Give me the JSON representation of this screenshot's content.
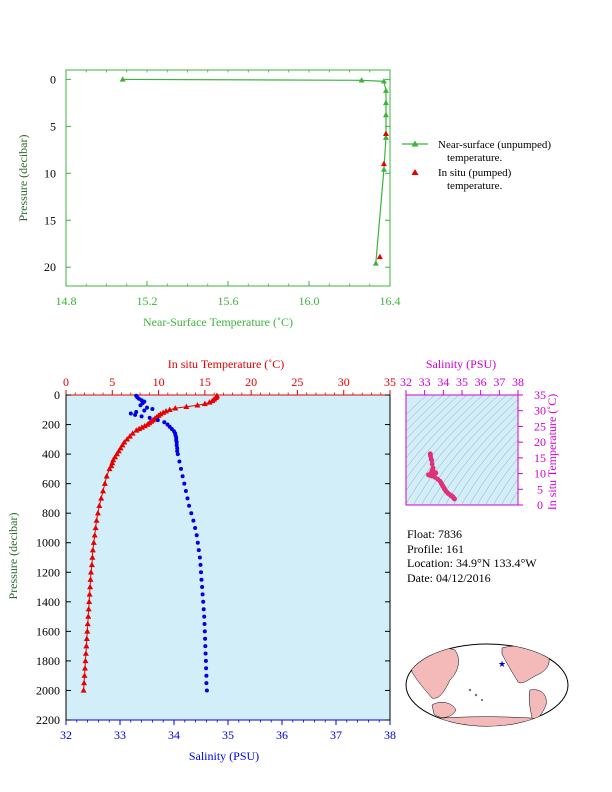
{
  "colors": {
    "green": "#3cb43c",
    "red": "#e60000",
    "blue": "#0000e6",
    "magenta": "#d200d2",
    "darkgreen": "#2e6b2e",
    "ocean": "#d2eef8",
    "land": "#f4b9b9"
  },
  "top_chart": {
    "xlabel": "Near-Surface Temperature (˚C)",
    "ylabel": "Pressure (decibar)",
    "xticks": [
      "14.8",
      "15.2",
      "15.6",
      "16.0",
      "16.4"
    ],
    "yticks": [
      "0",
      "5",
      "10",
      "15",
      "20"
    ],
    "legend": {
      "near_l1": "Near-surface (unpumped)",
      "near_l2": "temperature.",
      "insitu_l1": "In situ (pumped)",
      "insitu_l2": "temperature."
    }
  },
  "main_chart": {
    "top_label": "In situ Temperature (˚C)",
    "bottom_label": "Salinity (PSU)",
    "ylabel": "Pressure (decibar)",
    "temp_ticks": [
      "0",
      "5",
      "10",
      "15",
      "20",
      "25",
      "30",
      "35"
    ],
    "sal_ticks": [
      "32",
      "33",
      "34",
      "35",
      "36",
      "37",
      "38"
    ],
    "p_ticks": [
      "0",
      "200",
      "400",
      "600",
      "800",
      "1000",
      "1200",
      "1400",
      "1600",
      "1800",
      "2000",
      "2200"
    ]
  },
  "ts_chart": {
    "top_label": "Salinity (PSU)",
    "right_label": "In situ Temperature (˚C)",
    "sal_ticks": [
      "32",
      "33",
      "34",
      "35",
      "36",
      "37",
      "38"
    ],
    "temp_ticks": [
      "0",
      "5",
      "10",
      "15",
      "20",
      "25",
      "30",
      "35"
    ]
  },
  "info": {
    "float": "Float:  7836",
    "profile": "Profile:  161",
    "location": "Location:  34.9°N  133.4°W",
    "date": "Date:  04/12/2016"
  },
  "chart_data": [
    {
      "type": "line",
      "title": "",
      "xlabel": "Near-Surface Temperature (˚C)",
      "ylabel": "Pressure (decibar)",
      "xlim": [
        14.8,
        16.4
      ],
      "ylim": [
        22,
        -1
      ],
      "legend": "right",
      "series": [
        {
          "name": "Near-surface (unpumped) temperature.",
          "marker": "triangle",
          "x": [
            15.08,
            16.26,
            16.37,
            16.38,
            16.38,
            16.38,
            16.38,
            16.37,
            16.33
          ],
          "y": [
            0.0,
            0.1,
            0.2,
            1.2,
            2.5,
            3.8,
            6.2,
            9.6,
            19.6
          ]
        },
        {
          "name": "In situ (pumped) temperature.",
          "marker": "triangle",
          "x": [
            16.38,
            16.37,
            16.35
          ],
          "y": [
            5.8,
            9.0,
            18.9
          ]
        }
      ]
    },
    {
      "type": "line",
      "title": "",
      "xlabel": "Salinity (PSU)",
      "x2label": "In situ Temperature (˚C)",
      "ylabel": "Pressure (decibar)",
      "xlim_salinity": [
        32,
        38
      ],
      "xlim_temperature": [
        0,
        35
      ],
      "ylim": [
        2200,
        0
      ],
      "series": [
        {
          "name": "In situ Temperature (˚C)",
          "p": [
            5,
            10,
            20,
            30,
            40,
            50,
            60,
            70,
            80,
            90,
            100,
            110,
            120,
            130,
            140,
            150,
            160,
            170,
            180,
            190,
            200,
            210,
            220,
            230,
            240,
            260,
            280,
            300,
            320,
            340,
            360,
            380,
            400,
            420,
            440,
            460,
            480,
            500,
            550,
            600,
            650,
            700,
            750,
            800,
            850,
            900,
            950,
            1000,
            1050,
            1100,
            1150,
            1200,
            1250,
            1300,
            1350,
            1400,
            1450,
            1500,
            1550,
            1600,
            1650,
            1700,
            1750,
            1800,
            1850,
            1900,
            1950,
            2000
          ],
          "values": [
            16.3,
            16.3,
            16.2,
            16.0,
            15.8,
            15.5,
            15.0,
            14.2,
            13.0,
            11.8,
            11.2,
            10.8,
            10.5,
            10.2,
            10.0,
            9.8,
            9.6,
            9.4,
            9.2,
            9.0,
            8.8,
            8.5,
            8.2,
            7.9,
            7.6,
            7.2,
            6.9,
            6.6,
            6.3,
            6.1,
            5.9,
            5.7,
            5.5,
            5.3,
            5.1,
            5.0,
            4.9,
            4.7,
            4.4,
            4.2,
            4.0,
            3.8,
            3.6,
            3.45,
            3.3,
            3.2,
            3.1,
            3.0,
            2.9,
            2.85,
            2.8,
            2.7,
            2.65,
            2.6,
            2.55,
            2.5,
            2.45,
            2.4,
            2.35,
            2.3,
            2.25,
            2.2,
            2.15,
            2.1,
            2.05,
            2.0,
            1.95,
            1.9
          ]
        },
        {
          "name": "Salinity (PSU)",
          "p": [
            5,
            15,
            25,
            35,
            45,
            55,
            70,
            85,
            95,
            105,
            115,
            125,
            135,
            145,
            155,
            170,
            185,
            200,
            215,
            230,
            245,
            260,
            275,
            290,
            305,
            320,
            340,
            360,
            380,
            400,
            450,
            500,
            550,
            600,
            650,
            700,
            750,
            800,
            850,
            900,
            950,
            1000,
            1050,
            1100,
            1150,
            1200,
            1250,
            1300,
            1350,
            1400,
            1450,
            1500,
            1550,
            1600,
            1650,
            1700,
            1750,
            1800,
            1850,
            1900,
            1950,
            2000
          ],
          "values": [
            33.3,
            33.32,
            33.35,
            33.4,
            33.45,
            33.42,
            33.38,
            33.5,
            33.6,
            33.45,
            33.3,
            33.2,
            33.28,
            33.4,
            33.55,
            33.7,
            33.82,
            33.88,
            33.92,
            33.96,
            34.0,
            34.02,
            34.03,
            34.04,
            34.04,
            34.05,
            34.05,
            34.06,
            34.06,
            34.07,
            34.1,
            34.13,
            34.16,
            34.19,
            34.22,
            34.25,
            34.28,
            34.32,
            34.36,
            34.39,
            34.42,
            34.44,
            34.46,
            34.48,
            34.49,
            34.5,
            34.51,
            34.52,
            34.53,
            34.54,
            34.55,
            34.56,
            34.565,
            34.57,
            34.575,
            34.58,
            34.585,
            34.59,
            34.595,
            34.6,
            34.6,
            34.61
          ]
        }
      ]
    },
    {
      "type": "scatter",
      "title": "",
      "xlabel": "Salinity (PSU)",
      "ylabel": "In situ Temperature (˚C)",
      "xlim": [
        32,
        38
      ],
      "ylim": [
        0,
        35
      ],
      "series": [
        {
          "name": "T-S",
          "x": [
            33.3,
            33.3,
            33.32,
            33.35,
            33.38,
            33.4,
            33.45,
            33.42,
            33.38,
            33.5,
            33.6,
            33.45,
            33.3,
            33.2,
            33.28,
            33.4,
            33.55,
            33.7,
            33.82,
            33.88,
            33.92,
            33.96,
            34.0,
            34.04,
            34.07,
            34.13,
            34.19,
            34.25,
            34.32,
            34.39,
            34.44,
            34.48,
            34.5,
            34.52,
            34.54,
            34.56,
            34.58,
            34.6
          ],
          "y": [
            16.3,
            16.0,
            15.5,
            14.6,
            14.2,
            13.0,
            11.8,
            11.2,
            10.8,
            10.5,
            10.2,
            10.0,
            9.8,
            9.6,
            9.4,
            9.2,
            8.8,
            8.2,
            7.6,
            7.0,
            6.6,
            6.2,
            5.8,
            5.4,
            5.0,
            4.5,
            4.1,
            3.7,
            3.4,
            3.1,
            2.9,
            2.8,
            2.6,
            2.5,
            2.3,
            2.2,
            2.0,
            1.9
          ]
        }
      ]
    }
  ]
}
